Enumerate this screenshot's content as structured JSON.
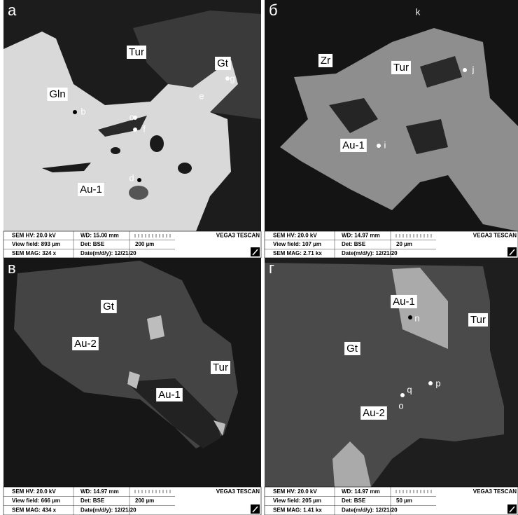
{
  "panels": [
    {
      "letter": "а",
      "labels": [
        "Tur",
        "Gt",
        "Gln",
        "b",
        "c",
        "f",
        "e",
        "g",
        "d",
        "Au-1"
      ],
      "info": {
        "hv": "SEM HV: 20.0 kV",
        "wd": "WD: 15.00 mm",
        "brand": "VEGA3 TESCAN",
        "view_field": "View field: 893 µm",
        "det": "Det: BSE",
        "scale": "200 µm",
        "mag": "SEM MAG: 324 x",
        "date": "Date(m/d/y): 12/21/20"
      }
    },
    {
      "letter": "б",
      "labels": [
        "k",
        "Zr",
        "Tur",
        "j",
        "Au-1",
        "i"
      ],
      "info": {
        "hv": "SEM HV: 20.0 kV",
        "wd": "WD: 14.97 mm",
        "brand": "VEGA3 TESCAN",
        "view_field": "View field: 107 µm",
        "det": "Det: BSE",
        "scale": "20 µm",
        "mag": "SEM MAG: 2.71 kx",
        "date": "Date(m/d/y): 12/21/20"
      }
    },
    {
      "letter": "в",
      "labels": [
        "Gt",
        "Au-2",
        "Tur",
        "Au-1"
      ],
      "info": {
        "hv": "SEM HV: 20.0 kV",
        "wd": "WD: 14.97 mm",
        "brand": "VEGA3 TESCAN",
        "view_field": "View field: 666 µm",
        "det": "Det: BSE",
        "scale": "200 µm",
        "mag": "SEM MAG: 434 x",
        "date": "Date(m/d/y): 12/21/20"
      }
    },
    {
      "letter": "г",
      "labels": [
        "Au-1",
        "n",
        "Tur",
        "Gt",
        "p",
        "q",
        "o",
        "Au-2"
      ],
      "info": {
        "hv": "SEM HV: 20.0 kV",
        "wd": "WD: 14.97 mm",
        "brand": "VEGA3 TESCAN",
        "view_field": "View field: 205 µm",
        "det": "Det: BSE",
        "scale": "50 µm",
        "mag": "SEM MAG: 1.41 kx",
        "date": "Date(m/d/y): 12/21/20"
      }
    }
  ]
}
